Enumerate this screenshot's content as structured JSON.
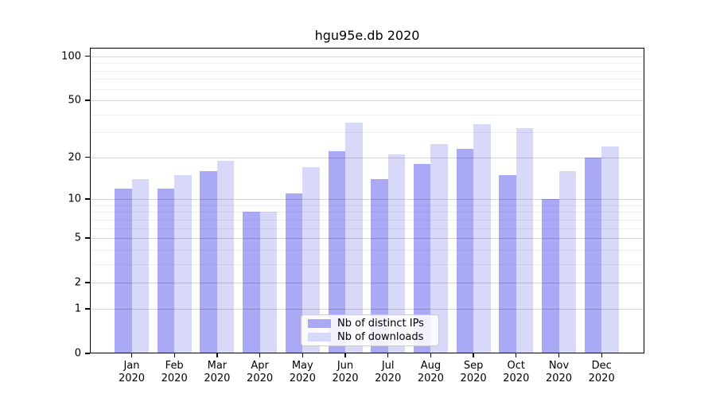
{
  "title": "hgu95e.db 2020",
  "chart_data": {
    "type": "bar",
    "title": "hgu95e.db 2020",
    "categories": [
      "Jan",
      "Feb",
      "Mar",
      "Apr",
      "May",
      "Jun",
      "Jul",
      "Aug",
      "Sep",
      "Oct",
      "Nov",
      "Dec"
    ],
    "x_year": "2020",
    "series": [
      {
        "name": "Nb of distinct IPs",
        "color": "#a9a9f6",
        "values": [
          12,
          12,
          16,
          8,
          11,
          22,
          14,
          18,
          23,
          15,
          10,
          20
        ]
      },
      {
        "name": "Nb of downloads",
        "color": "#d8d8f9",
        "values": [
          14,
          15,
          19,
          8,
          17,
          35,
          21,
          25,
          34,
          32,
          16,
          24
        ]
      }
    ],
    "xlabel": "",
    "ylabel": "",
    "yscale": "log10(1+x)",
    "ylim": [
      0,
      113
    ],
    "ytick_values": [
      0,
      1,
      2,
      5,
      10,
      20,
      50,
      100
    ],
    "ytick_labels": [
      "0",
      "1",
      "2",
      "5",
      "10",
      "20",
      "50",
      "100"
    ],
    "yminor_values": [
      3,
      4,
      6,
      7,
      8,
      9,
      30,
      40,
      60,
      70,
      80,
      90
    ],
    "grid": "horizontal, drawn over bars",
    "legend_position": "lower center",
    "bar_edge": "none",
    "frame_color": "#000000",
    "major_grid_color": "#d6d6d6",
    "minor_grid_color": "#efefef"
  }
}
